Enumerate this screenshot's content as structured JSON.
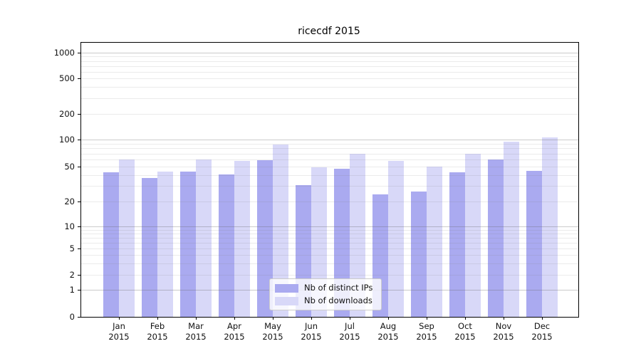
{
  "chart_data": {
    "type": "bar",
    "title": "ricecdf 2015",
    "yscale": "symlog",
    "ylim": [
      0,
      1300
    ],
    "y_ticks": [
      0,
      1,
      2,
      5,
      10,
      20,
      50,
      100,
      200,
      500,
      1000
    ],
    "grid": "horizontal major and minor log gridlines",
    "legend_position": "inside lower-center",
    "categories": [
      "Jan\n2015",
      "Feb\n2015",
      "Mar\n2015",
      "Apr\n2015",
      "May\n2015",
      "Jun\n2015",
      "Jul\n2015",
      "Aug\n2015",
      "Sep\n2015",
      "Oct\n2015",
      "Nov\n2015",
      "Dec\n2015"
    ],
    "series": [
      {
        "name": "Nb of distinct IPs",
        "color": "#aaaaf0",
        "values": [
          43,
          37,
          44,
          41,
          59,
          31,
          47,
          24,
          26,
          43,
          60,
          45
        ]
      },
      {
        "name": "Nb of downloads",
        "color": "#d8d8f8",
        "values": [
          60,
          44,
          60,
          58,
          88,
          49,
          70,
          58,
          50,
          70,
          95,
          105
        ]
      }
    ]
  }
}
